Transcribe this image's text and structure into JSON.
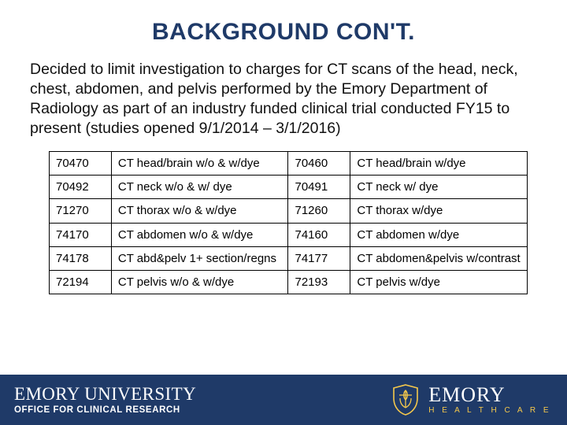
{
  "colors": {
    "title": "#1f3a68",
    "footer_bg": "#1f3a68",
    "footer_text": "#ffffff",
    "accent_gold": "#f5c84b",
    "table_border": "#000000",
    "body_text": "#111111",
    "background": "#ffffff"
  },
  "title": "BACKGROUND CON'T.",
  "body": "Decided to limit investigation to charges for CT scans of the head, neck, chest, abdomen, and pelvis performed by the Emory Department of Radiology as part of an industry funded clinical trial conducted FY15 to present (studies opened 9/1/2014 – 3/1/2016)",
  "codes": {
    "column_widths_pct": [
      13,
      37,
      13,
      37
    ],
    "font_size_pt": 15,
    "rows": [
      {
        "c1": "70470",
        "d1": "CT head/brain w/o & w/dye",
        "c2": "70460",
        "d2": "CT head/brain w/dye"
      },
      {
        "c1": "70492",
        "d1": "CT neck w/o & w/ dye",
        "c2": "70491",
        "d2": "CT neck w/ dye"
      },
      {
        "c1": "71270",
        "d1": "CT thorax w/o & w/dye",
        "c2": "71260",
        "d2": "CT thorax w/dye"
      },
      {
        "c1": "74170",
        "d1": "CT abdomen w/o & w/dye",
        "c2": "74160",
        "d2": "CT abdomen w/dye"
      },
      {
        "c1": "74178",
        "d1": "CT abd&pelv 1+ section/regns",
        "c2": "74177",
        "d2": "CT abdomen&pelvis w/contrast"
      },
      {
        "c1": "72194",
        "d1": "CT pelvis w/o & w/dye",
        "c2": "72193",
        "d2": "CT pelvis w/dye"
      }
    ]
  },
  "footer": {
    "university": "EMORY UNIVERSITY",
    "office": "OFFICE FOR CLINICAL RESEARCH",
    "logo_name": "EMORY",
    "logo_sub": "H E A L T H C A R E"
  }
}
